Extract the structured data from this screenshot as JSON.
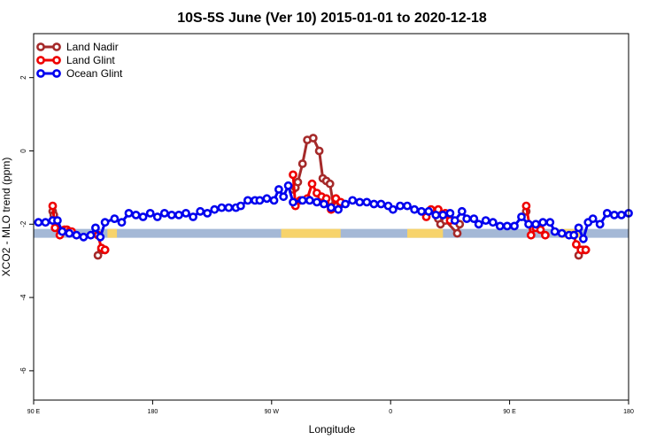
{
  "chart_data": {
    "type": "line",
    "title": "10S-5S June (Ver 10)   2015-01-01 to 2020-12-18",
    "xlabel": "Longitude",
    "ylabel": "XCO2 - MLO trend (ppm)",
    "xlim": [
      90,
      340
    ],
    "ylim": [
      -6.8,
      3.2
    ],
    "x_ticks": [
      {
        "value": 90,
        "label": "90 E"
      },
      {
        "value": 140,
        "label": "180"
      },
      {
        "value": 190,
        "label": "90 W"
      },
      {
        "value": 240,
        "label": "0"
      },
      {
        "value": 290,
        "label": "90 E"
      },
      {
        "value": 340,
        "label": "180"
      }
    ],
    "y_ticks": [
      {
        "value": 2,
        "label": "2"
      },
      {
        "value": 0,
        "label": "0"
      },
      {
        "value": -2,
        "label": "-2"
      },
      {
        "value": -4,
        "label": "-4"
      },
      {
        "value": -6,
        "label": "-6"
      }
    ],
    "grid": false,
    "legend_position": "top-left",
    "landmask": {
      "y": -2.25,
      "ocean_color": "#a4b8d6",
      "land_color": "#f7d36b",
      "land_segments": [
        [
          121,
          125
        ],
        [
          194,
          219
        ],
        [
          247,
          262
        ],
        [
          311,
          320
        ]
      ]
    },
    "series": [
      {
        "name": "Land Nadir",
        "color": "#a52a2a",
        "segments": [
          [
            [
              98,
              -1.65
            ],
            [
              98.5,
              -1.75
            ]
          ],
          [
            [
              117,
              -2.85
            ],
            [
              118.5,
              -2.7
            ],
            [
              120,
              -2.7
            ]
          ],
          [
            [
              199,
              -1.05
            ],
            [
              200,
              -1.0
            ],
            [
              201,
              -0.85
            ],
            [
              203,
              -0.35
            ],
            [
              205,
              0.3
            ],
            [
              207.5,
              0.35
            ],
            [
              210,
              0.0
            ],
            [
              211.5,
              -0.75
            ],
            [
              213,
              -0.82
            ],
            [
              214.5,
              -0.9
            ],
            [
              216,
              -1.5
            ],
            [
              217.5,
              -1.5
            ],
            [
              219,
              -1.45
            ]
          ],
          [
            [
              259,
              -1.7
            ],
            [
              260,
              -1.85
            ],
            [
              261,
              -2.0
            ],
            [
              263,
              -1.9
            ],
            [
              268,
              -2.25
            ],
            [
              269,
              -2.0
            ]
          ],
          [
            [
              297,
              -1.65
            ]
          ],
          [
            [
              319,
              -2.85
            ],
            [
              321,
              -2.7
            ],
            [
              322,
              -2.7
            ]
          ]
        ]
      },
      {
        "name": "Land Glint",
        "color": "#ee0000",
        "segments": [
          [
            [
              98,
              -1.5
            ],
            [
              99,
              -2.1
            ],
            [
              101,
              -2.3
            ],
            [
              103,
              -2.15
            ],
            [
              104,
              -2.15
            ],
            [
              105,
              -2.2
            ],
            [
              106,
              -2.2
            ]
          ],
          [
            [
              117,
              -2.3
            ],
            [
              118.5,
              -2.65
            ],
            [
              120,
              -2.7
            ]
          ],
          [
            [
              199,
              -0.65
            ],
            [
              200,
              -1.5
            ],
            [
              202,
              -1.35
            ],
            [
              205,
              -1.3
            ],
            [
              207,
              -0.9
            ],
            [
              209,
              -1.15
            ],
            [
              211,
              -1.25
            ],
            [
              213,
              -1.3
            ],
            [
              215,
              -1.6
            ],
            [
              217,
              -1.3
            ],
            [
              219,
              -1.4
            ]
          ],
          [
            [
              255,
              -1.8
            ],
            [
              257,
              -1.6
            ],
            [
              260,
              -1.6
            ],
            [
              263,
              -1.7
            ],
            [
              265,
              -1.9
            ]
          ],
          [
            [
              297,
              -1.5
            ],
            [
              299,
              -2.3
            ],
            [
              301,
              -2.1
            ],
            [
              303,
              -2.15
            ],
            [
              305,
              -2.3
            ]
          ],
          [
            [
              317,
              -2.3
            ],
            [
              318,
              -2.55
            ],
            [
              320,
              -2.7
            ],
            [
              322,
              -2.7
            ]
          ]
        ]
      },
      {
        "name": "Ocean Glint",
        "color": "#0000ee",
        "segments": [
          [
            [
              92,
              -1.95
            ],
            [
              95,
              -1.95
            ],
            [
              98,
              -1.9
            ],
            [
              100,
              -1.9
            ],
            [
              102,
              -2.2
            ],
            [
              105,
              -2.25
            ],
            [
              108,
              -2.3
            ],
            [
              111,
              -2.35
            ],
            [
              114,
              -2.3
            ],
            [
              116,
              -2.1
            ],
            [
              118,
              -2.35
            ],
            [
              120,
              -1.95
            ],
            [
              124,
              -1.85
            ],
            [
              127,
              -1.95
            ],
            [
              130,
              -1.7
            ],
            [
              133,
              -1.75
            ],
            [
              136,
              -1.8
            ],
            [
              139,
              -1.7
            ],
            [
              142,
              -1.8
            ],
            [
              145,
              -1.7
            ],
            [
              148,
              -1.75
            ],
            [
              151,
              -1.75
            ],
            [
              154,
              -1.7
            ],
            [
              157,
              -1.8
            ],
            [
              160,
              -1.65
            ],
            [
              163,
              -1.7
            ],
            [
              166,
              -1.6
            ],
            [
              169,
              -1.55
            ],
            [
              172,
              -1.55
            ],
            [
              175,
              -1.55
            ],
            [
              177,
              -1.5
            ],
            [
              180,
              -1.35
            ],
            [
              183,
              -1.35
            ],
            [
              185,
              -1.35
            ],
            [
              188,
              -1.3
            ],
            [
              191,
              -1.35
            ],
            [
              193,
              -1.05
            ],
            [
              195,
              -1.25
            ],
            [
              197,
              -0.95
            ],
            [
              199,
              -1.4
            ],
            [
              203,
              -1.35
            ],
            [
              206,
              -1.35
            ],
            [
              209,
              -1.4
            ],
            [
              212,
              -1.45
            ],
            [
              215,
              -1.55
            ],
            [
              218,
              -1.6
            ],
            [
              221,
              -1.45
            ],
            [
              224,
              -1.35
            ],
            [
              227,
              -1.4
            ],
            [
              230,
              -1.4
            ],
            [
              233,
              -1.45
            ],
            [
              236,
              -1.45
            ],
            [
              239,
              -1.5
            ],
            [
              241,
              -1.6
            ],
            [
              244,
              -1.5
            ],
            [
              247,
              -1.5
            ],
            [
              250,
              -1.6
            ],
            [
              253,
              -1.65
            ],
            [
              256,
              -1.65
            ],
            [
              259,
              -1.75
            ],
            [
              262,
              -1.75
            ],
            [
              265,
              -1.7
            ],
            [
              267,
              -1.9
            ],
            [
              270,
              -1.65
            ],
            [
              272,
              -1.85
            ],
            [
              275,
              -1.85
            ],
            [
              277,
              -2.0
            ],
            [
              280,
              -1.9
            ],
            [
              283,
              -1.95
            ],
            [
              286,
              -2.05
            ],
            [
              289,
              -2.05
            ],
            [
              292,
              -2.05
            ],
            [
              295,
              -1.8
            ],
            [
              298,
              -2.0
            ],
            [
              301,
              -2.0
            ],
            [
              304,
              -1.95
            ],
            [
              307,
              -1.95
            ],
            [
              309,
              -2.2
            ],
            [
              312,
              -2.25
            ],
            [
              315,
              -2.3
            ],
            [
              317,
              -2.3
            ],
            [
              319,
              -2.1
            ],
            [
              321,
              -2.4
            ],
            [
              323,
              -1.95
            ],
            [
              325,
              -1.85
            ],
            [
              328,
              -2.0
            ],
            [
              331,
              -1.7
            ],
            [
              334,
              -1.75
            ],
            [
              337,
              -1.75
            ],
            [
              340,
              -1.7
            ]
          ]
        ]
      }
    ]
  }
}
